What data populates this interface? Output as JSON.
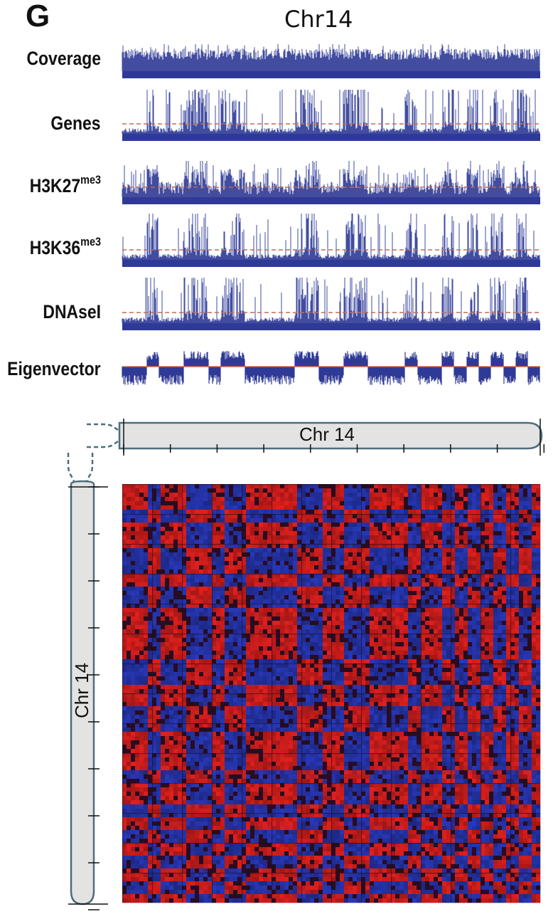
{
  "panel_letter": "G",
  "title": "Chr14",
  "tracks": [
    {
      "label": "Coverage",
      "sup": ""
    },
    {
      "label": "Genes",
      "sup": ""
    },
    {
      "label": "H3K27",
      "sup": "me3"
    },
    {
      "label": "H3K36",
      "sup": "me3"
    },
    {
      "label": "DNAseI",
      "sup": ""
    },
    {
      "label": "Eigenvector",
      "sup": ""
    }
  ],
  "chromosome_label": "Chr 14",
  "colors": {
    "track_fill": "#2e3a96",
    "threshold_line": "#c86a50",
    "heatmap_red": "#e0201e",
    "heatmap_blue": "#2838b8",
    "chromosome_fill": "#e3e3e3",
    "chromosome_outline": "#4d6e7c"
  },
  "chart_data": {
    "type": "heatmap",
    "title": "Chr14",
    "tracks": [
      "Coverage",
      "Genes",
      "H3K27me3",
      "H3K36me3",
      "DNAseI",
      "Eigenvector"
    ],
    "x_axis": "Chr 14",
    "y_axis": "Chr 14",
    "compartment_pattern": [
      1,
      1,
      0,
      1,
      1,
      0,
      0,
      1,
      0,
      0,
      1,
      1,
      1,
      1,
      0,
      0,
      1,
      1,
      0,
      0,
      1,
      1,
      1,
      0,
      1,
      1,
      0,
      1,
      0,
      1,
      0,
      1,
      0,
      1
    ],
    "eigenvector_sign": [
      -1,
      -1,
      1,
      -1,
      -1,
      1,
      1,
      -1,
      1,
      1,
      -1,
      -1,
      -1,
      -1,
      1,
      1,
      -1,
      -1,
      1,
      1,
      -1,
      -1,
      -1,
      1,
      -1,
      -1,
      1,
      -1,
      1,
      -1,
      1,
      -1,
      1,
      -1
    ],
    "colorscale": [
      "blue",
      "red"
    ]
  }
}
